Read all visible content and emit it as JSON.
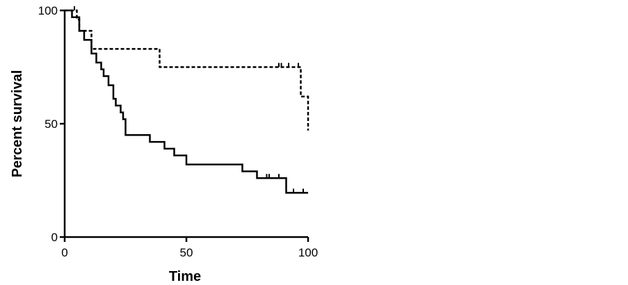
{
  "chart_data": {
    "type": "line",
    "subtype": "kaplan-meier step",
    "title": "",
    "xlabel": "Time",
    "ylabel": "Percent survival",
    "xlim": [
      0,
      100
    ],
    "ylim": [
      0,
      100
    ],
    "x_ticks": [
      "0",
      "50",
      "100"
    ],
    "y_ticks": [
      "0",
      "50",
      "100"
    ],
    "grid": false,
    "legend": "none",
    "series": [
      {
        "line_style": "solid",
        "color": "#000000",
        "steps": [
          [
            0,
            100
          ],
          [
            3,
            97
          ],
          [
            6,
            91
          ],
          [
            8,
            87
          ],
          [
            11,
            81
          ],
          [
            13,
            77
          ],
          [
            15,
            74
          ],
          [
            16,
            71
          ],
          [
            18,
            67
          ],
          [
            20,
            61
          ],
          [
            21,
            58
          ],
          [
            23,
            55
          ],
          [
            24,
            52
          ],
          [
            25,
            45
          ],
          [
            35,
            42
          ],
          [
            41,
            39
          ],
          [
            45,
            36
          ],
          [
            50,
            32
          ],
          [
            73,
            29
          ],
          [
            79,
            26
          ],
          [
            91,
            19.5
          ],
          [
            100,
            19.5
          ]
        ],
        "censored": [
          [
            79,
            26
          ],
          [
            83,
            26
          ],
          [
            84,
            26
          ],
          [
            88,
            26
          ],
          [
            94,
            19.5
          ],
          [
            98,
            19.5
          ]
        ]
      },
      {
        "line_style": "dashed",
        "color": "#000000",
        "steps": [
          [
            0,
            100
          ],
          [
            5,
            96
          ],
          [
            6,
            91
          ],
          [
            11,
            83
          ],
          [
            39,
            75
          ],
          [
            97,
            62
          ],
          [
            100,
            47
          ]
        ],
        "censored": [
          [
            4,
            100
          ],
          [
            88,
            75
          ],
          [
            89,
            75
          ],
          [
            92,
            75
          ],
          [
            96,
            75
          ]
        ]
      }
    ]
  }
}
